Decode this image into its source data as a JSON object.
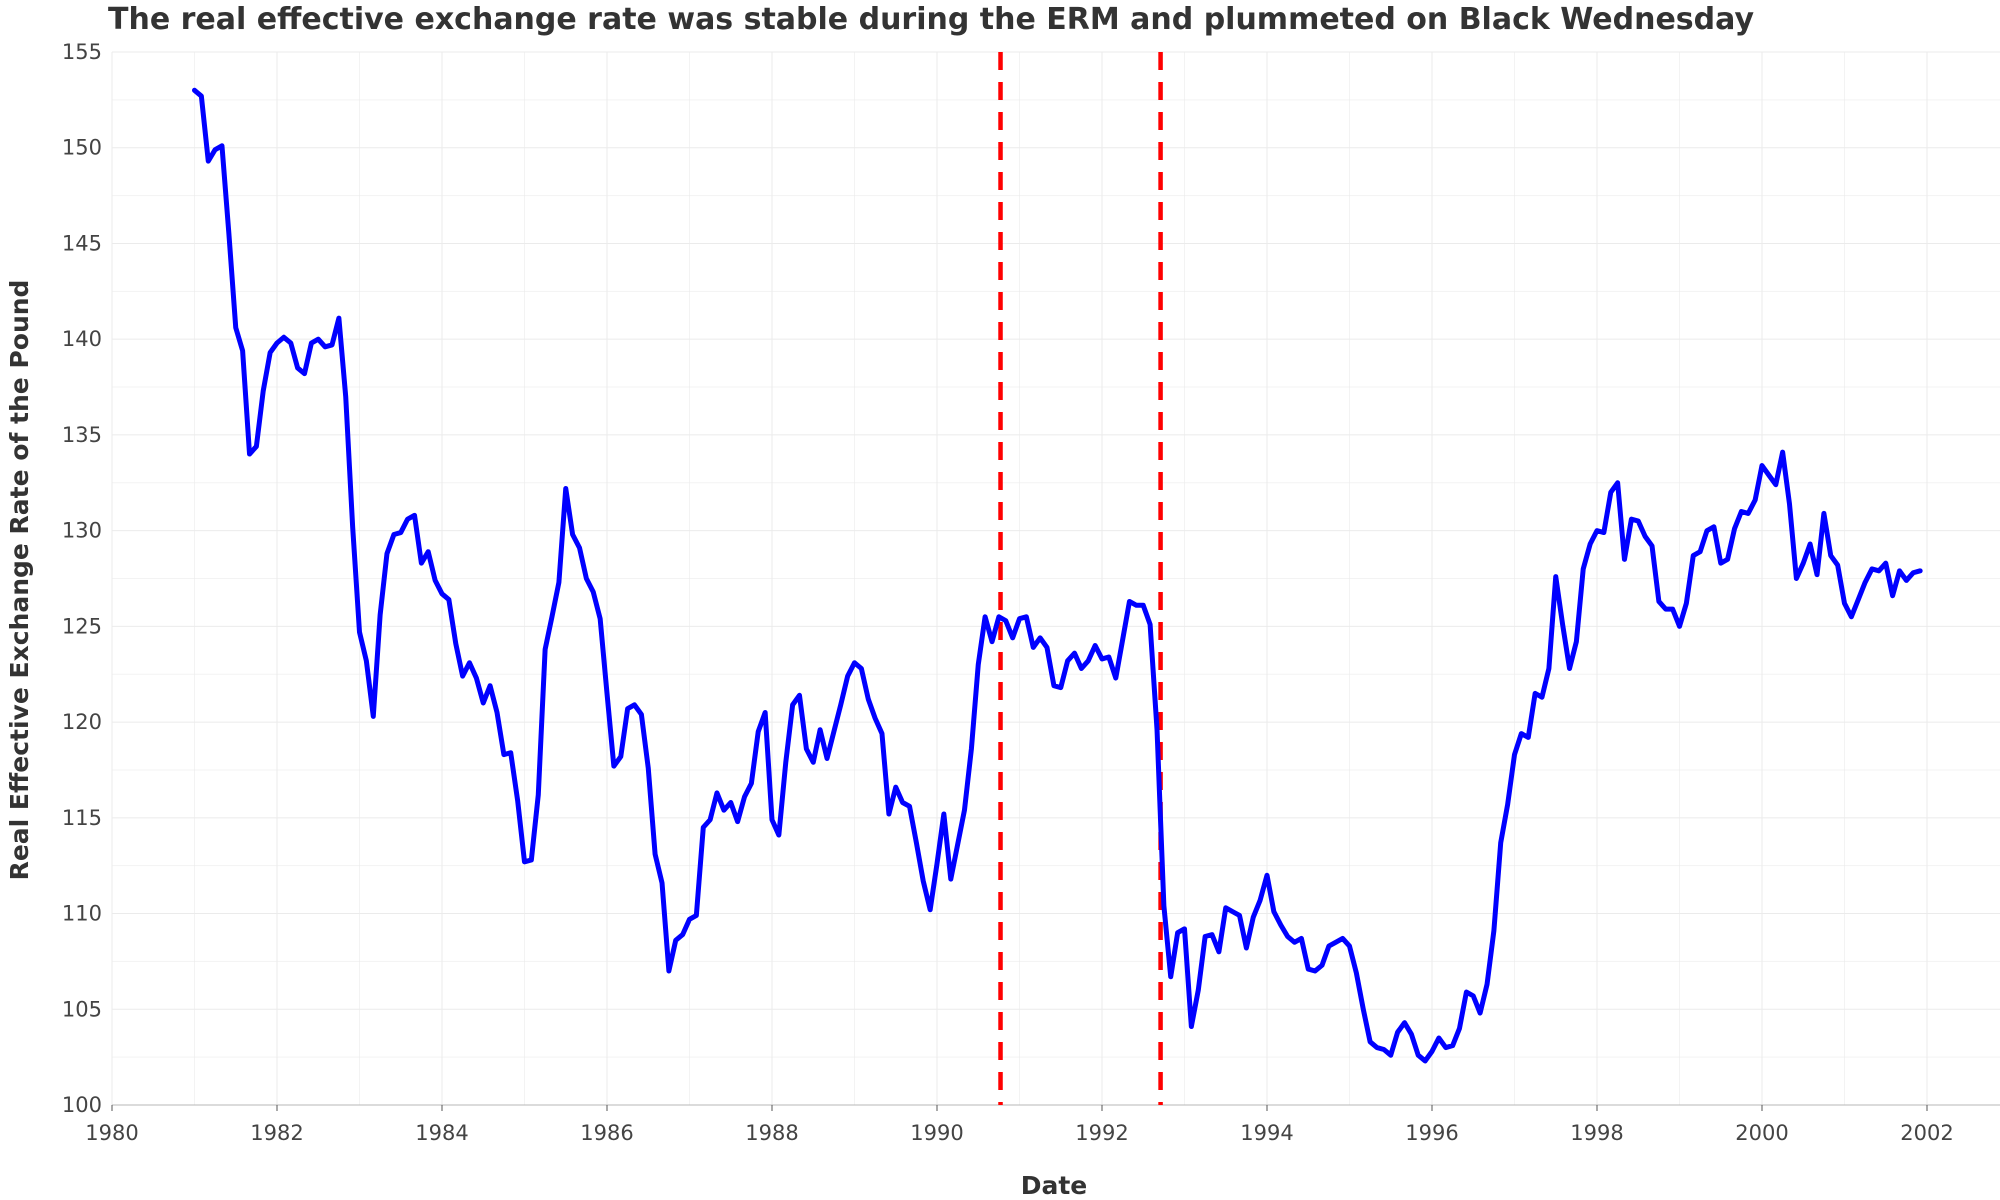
{
  "chart_data": {
    "type": "line",
    "title": "The real effective exchange rate was stable during the ERM and plummeted on Black Wednesday",
    "xlabel": "Date",
    "ylabel": "Real Effective Exchange Rate of the Pound",
    "xlim": [
      1980,
      2002
    ],
    "ylim": [
      100,
      155
    ],
    "x_ticks": [
      "1980",
      "1982",
      "1984",
      "1986",
      "1988",
      "1990",
      "1992",
      "1994",
      "1996",
      "1998",
      "2000",
      "2002"
    ],
    "y_ticks": [
      "100",
      "105",
      "110",
      "115",
      "120",
      "125",
      "130",
      "135",
      "140",
      "145",
      "150",
      "155"
    ],
    "grid": true,
    "legend": "none",
    "series": [
      {
        "color": "#0000ff",
        "x": [
          1981.0,
          1981.083,
          1981.167,
          1981.25,
          1981.333,
          1981.417,
          1981.5,
          1981.583,
          1981.667,
          1981.75,
          1981.833,
          1981.917,
          1982.0,
          1982.083,
          1982.167,
          1982.25,
          1982.333,
          1982.417,
          1982.5,
          1982.583,
          1982.667,
          1982.75,
          1982.833,
          1982.917,
          1983.0,
          1983.083,
          1983.167,
          1983.25,
          1983.333,
          1983.417,
          1983.5,
          1983.583,
          1983.667,
          1983.75,
          1983.833,
          1983.917,
          1984.0,
          1984.083,
          1984.167,
          1984.25,
          1984.333,
          1984.417,
          1984.5,
          1984.583,
          1984.667,
          1984.75,
          1984.833,
          1984.917,
          1985.0,
          1985.083,
          1985.167,
          1985.25,
          1985.333,
          1985.417,
          1985.5,
          1985.583,
          1985.667,
          1985.75,
          1985.833,
          1985.917,
          1986.0,
          1986.083,
          1986.167,
          1986.25,
          1986.333,
          1986.417,
          1986.5,
          1986.583,
          1986.667,
          1986.75,
          1986.833,
          1986.917,
          1987.0,
          1987.083,
          1987.167,
          1987.25,
          1987.333,
          1987.417,
          1987.5,
          1987.583,
          1987.667,
          1987.75,
          1987.833,
          1987.917,
          1988.0,
          1988.083,
          1988.167,
          1988.25,
          1988.333,
          1988.417,
          1988.5,
          1988.583,
          1988.667,
          1988.75,
          1988.833,
          1988.917,
          1989.0,
          1989.083,
          1989.167,
          1989.25,
          1989.333,
          1989.417,
          1989.5,
          1989.583,
          1989.667,
          1989.75,
          1989.833,
          1989.917,
          1990.0,
          1990.083,
          1990.167,
          1990.25,
          1990.333,
          1990.417,
          1990.5,
          1990.583,
          1990.667,
          1990.75,
          1990.833,
          1990.917,
          1991.0,
          1991.083,
          1991.167,
          1991.25,
          1991.333,
          1991.417,
          1991.5,
          1991.583,
          1991.667,
          1991.75,
          1991.833,
          1991.917,
          1992.0,
          1992.083,
          1992.167,
          1992.25,
          1992.333,
          1992.417,
          1992.5,
          1992.583,
          1992.667,
          1992.75,
          1992.833,
          1992.917,
          1993.0,
          1993.083,
          1993.167,
          1993.25,
          1993.333,
          1993.417,
          1993.5,
          1993.583,
          1993.667,
          1993.75,
          1993.833,
          1993.917,
          1994.0,
          1994.083,
          1994.167,
          1994.25,
          1994.333,
          1994.417,
          1994.5,
          1994.583,
          1994.667,
          1994.75,
          1994.833,
          1994.917,
          1995.0,
          1995.083,
          1995.167,
          1995.25,
          1995.333,
          1995.417,
          1995.5,
          1995.583,
          1995.667,
          1995.75,
          1995.833,
          1995.917,
          1996.0,
          1996.083,
          1996.167,
          1996.25,
          1996.333,
          1996.417,
          1996.5,
          1996.583,
          1996.667,
          1996.75,
          1996.833,
          1996.917,
          1997.0,
          1997.083,
          1997.167,
          1997.25,
          1997.333,
          1997.417,
          1997.5,
          1997.583,
          1997.667,
          1997.75,
          1997.833,
          1997.917,
          1998.0,
          1998.083,
          1998.167,
          1998.25,
          1998.333,
          1998.417,
          1998.5,
          1998.583,
          1998.667,
          1998.75,
          1998.833,
          1998.917,
          1999.0,
          1999.083,
          1999.167,
          1999.25,
          1999.333,
          1999.417,
          1999.5,
          1999.583,
          1999.667,
          1999.75,
          1999.833,
          1999.917,
          2000.0,
          2000.083,
          2000.167,
          2000.25,
          2000.333,
          2000.417,
          2000.5,
          2000.583,
          2000.667,
          2000.75,
          2000.833,
          2000.917,
          2001.0,
          2001.083,
          2001.167,
          2001.25,
          2001.333,
          2001.417,
          2001.5,
          2001.583,
          2001.667,
          2001.75,
          2001.833,
          2001.917
        ],
        "y": [
          153.0,
          152.7,
          149.3,
          149.9,
          150.1,
          145.5,
          140.6,
          139.4,
          134.0,
          134.4,
          137.3,
          139.3,
          139.8,
          140.1,
          139.8,
          138.5,
          138.2,
          139.8,
          140.0,
          139.6,
          139.7,
          141.1,
          137.0,
          130.2,
          124.7,
          123.2,
          120.3,
          125.6,
          128.8,
          129.8,
          129.9,
          130.6,
          130.8,
          128.3,
          128.9,
          127.4,
          126.7,
          126.4,
          124.1,
          122.4,
          123.1,
          122.3,
          121.0,
          121.9,
          120.5,
          118.3,
          118.4,
          115.9,
          112.7,
          112.8,
          116.2,
          123.8,
          125.5,
          127.3,
          132.2,
          129.8,
          129.1,
          127.5,
          126.8,
          125.4,
          121.5,
          117.7,
          118.2,
          120.7,
          120.9,
          120.4,
          117.6,
          113.1,
          111.6,
          107.0,
          108.6,
          108.9,
          109.7,
          109.9,
          114.5,
          114.9,
          116.3,
          115.4,
          115.8,
          114.8,
          116.1,
          116.8,
          119.5,
          120.5,
          114.9,
          114.1,
          117.9,
          120.9,
          121.4,
          118.6,
          117.9,
          119.6,
          118.1,
          119.5,
          120.9,
          122.4,
          123.1,
          122.8,
          121.2,
          120.2,
          119.4,
          115.2,
          116.6,
          115.8,
          115.6,
          113.7,
          111.7,
          110.2,
          112.6,
          115.2,
          111.8,
          113.6,
          115.4,
          118.6,
          123.0,
          125.5,
          124.2,
          125.5,
          125.3,
          124.4,
          125.4,
          125.5,
          123.9,
          124.4,
          123.9,
          121.9,
          121.8,
          123.2,
          123.6,
          122.8,
          123.2,
          124.0,
          123.3,
          123.4,
          122.3,
          124.3,
          126.3,
          126.1,
          126.1,
          125.1,
          119.6,
          110.4,
          106.7,
          109.0,
          109.2,
          104.1,
          106.0,
          108.8,
          108.9,
          108.0,
          110.3,
          110.1,
          109.9,
          108.2,
          109.8,
          110.7,
          112.0,
          110.1,
          109.4,
          108.8,
          108.5,
          108.7,
          107.1,
          107.0,
          107.3,
          108.3,
          108.5,
          108.7,
          108.3,
          106.9,
          105.0,
          103.3,
          103.0,
          102.9,
          102.6,
          103.8,
          104.3,
          103.7,
          102.6,
          102.3,
          102.8,
          103.5,
          103.0,
          103.1,
          104.0,
          105.9,
          105.7,
          104.8,
          106.3,
          109.1,
          113.7,
          115.7,
          118.3,
          119.4,
          119.2,
          121.5,
          121.3,
          122.8,
          127.6,
          125.1,
          122.8,
          124.2,
          128.0,
          129.3,
          130.0,
          129.9,
          132.0,
          132.5,
          128.5,
          130.6,
          130.5,
          129.7,
          129.2,
          126.3,
          125.9,
          125.9,
          125.0,
          126.2,
          128.7,
          128.9,
          130.0,
          130.2,
          128.3,
          128.5,
          130.1,
          131.0,
          130.9,
          131.6,
          133.4,
          132.9,
          132.4,
          134.1,
          131.4,
          127.5,
          128.3,
          129.3,
          127.7,
          130.9,
          128.7,
          128.2,
          126.2,
          125.5,
          126.4,
          127.3,
          128.0,
          127.9,
          128.3,
          126.6,
          127.9,
          127.4,
          127.8,
          127.9
        ]
      }
    ],
    "vlines": [
      {
        "x": 1990.77,
        "color": "#ff0000",
        "style": "dashed"
      },
      {
        "x": 1992.71,
        "color": "#ff0000",
        "style": "dashed"
      }
    ]
  }
}
